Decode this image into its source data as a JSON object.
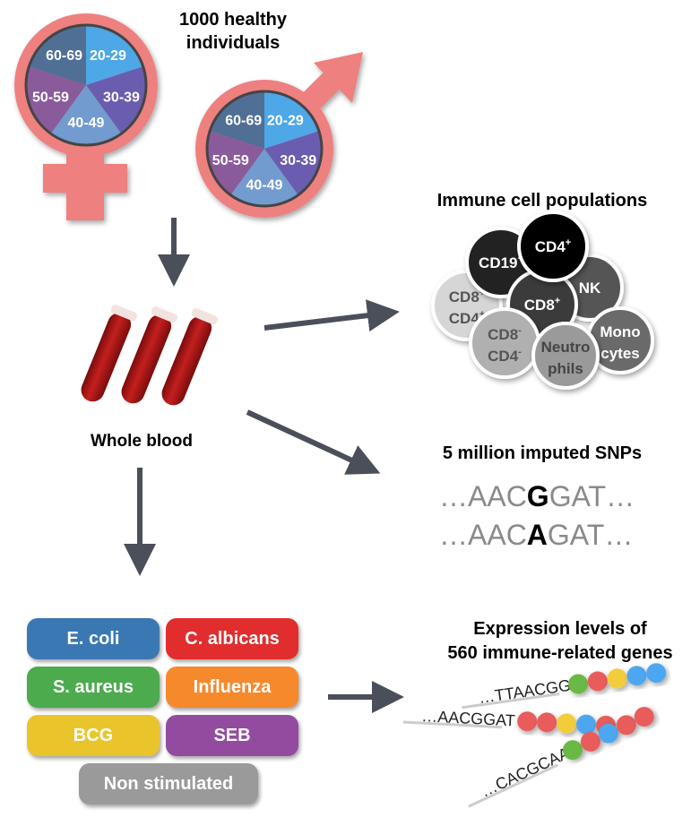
{
  "title": "1000 healthy individuals",
  "title_lines": [
    "1000 healthy",
    "individuals"
  ],
  "age_groups": [
    "20-29",
    "30-39",
    "40-49",
    "50-59",
    "60-69"
  ],
  "age_colors": [
    "#4ea7e6",
    "#6a5db0",
    "#729bcf",
    "#8a5b9b",
    "#506f95"
  ],
  "symbol_color": "#ee8080",
  "blood_label": "Whole blood",
  "immune": {
    "title": "Immune cell populations",
    "cells": [
      {
        "label1": "CD19",
        "sup1": "+",
        "label2": "",
        "sup2": "",
        "fill": "#222222",
        "text": "#ffffff"
      },
      {
        "label1": "CD4",
        "sup1": "+",
        "label2": "",
        "sup2": "",
        "fill": "#000000",
        "text": "#ffffff"
      },
      {
        "label1": "NK",
        "sup1": "",
        "label2": "",
        "sup2": "",
        "fill": "#555555",
        "text": "#ffffff"
      },
      {
        "label1": "CD8",
        "sup1": "+",
        "label2": "CD4",
        "sup2": "+",
        "fill": "#d6d6d6",
        "text": "#555555"
      },
      {
        "label1": "CD8",
        "sup1": "+",
        "label2": "",
        "sup2": "",
        "fill": "#3a3a3a",
        "text": "#ffffff"
      },
      {
        "label1": "Mono",
        "sup1": "",
        "label2": "cytes",
        "sup2": "",
        "fill": "#6a6a6a",
        "text": "#ffffff"
      },
      {
        "label1": "CD8",
        "sup1": "-",
        "label2": "CD4",
        "sup2": "-",
        "fill": "#b0b0b0",
        "text": "#555555"
      },
      {
        "label1": "Neutro",
        "sup1": "",
        "label2": "phils",
        "sup2": "",
        "fill": "#9a9a9a",
        "text": "#444444"
      }
    ]
  },
  "snps": {
    "title": "5 million imputed SNPs",
    "seq1": {
      "pre": "…AAC",
      "snp": "G",
      "post": "GAT…"
    },
    "seq2": {
      "pre": "…AAC",
      "snp": "A",
      "post": "GAT…"
    }
  },
  "expression": {
    "title_lines": [
      "Expression levels of",
      "560 immune-related genes"
    ],
    "seqs": [
      "…TTAACGG",
      "…AACGGAT",
      "…CACGCAA"
    ],
    "bead_colors": [
      [
        "#6ab844",
        "#e85c5c",
        "#f3cc3a",
        "#4ea7f0",
        "#4ea7f0"
      ],
      [
        "#e85c5c",
        "#e85c5c",
        "#f3cc3a",
        "#4ea7f0",
        "#e85c5c"
      ],
      [
        "#6ab844",
        "#e85c5c",
        "#4ea7f0",
        "#e85c5c",
        "#e85c5c"
      ]
    ]
  },
  "stimuli": [
    {
      "label": "E. coli",
      "color": "#3a78b4"
    },
    {
      "label": "C. albicans",
      "color": "#e12d2d"
    },
    {
      "label": "S. aureus",
      "color": "#4bab4d"
    },
    {
      "label": "Influenza",
      "color": "#f5892c"
    },
    {
      "label": "BCG",
      "color": "#e9c52b"
    },
    {
      "label": "SEB",
      "color": "#934ba0"
    },
    {
      "label": "Non stimulated",
      "color": "#9a9a9a"
    }
  ]
}
